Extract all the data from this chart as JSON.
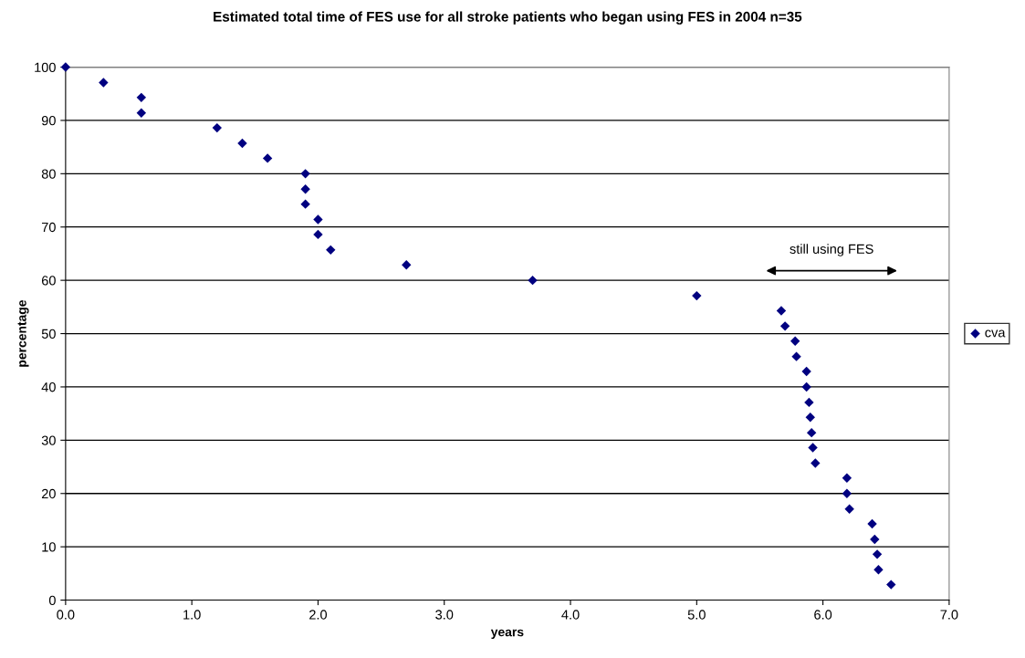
{
  "chart_data": {
    "type": "scatter",
    "title": "Estimated total time of FES use for all stroke patients who began using FES in 2004 n=35",
    "xlabel": "years",
    "ylabel": "percentage",
    "series": [
      {
        "name": "cva",
        "color": "#000080",
        "x": [
          0.0,
          0.3,
          0.6,
          0.6,
          1.2,
          1.4,
          1.6,
          1.9,
          1.9,
          1.9,
          2.0,
          2.0,
          2.1,
          2.7,
          3.7,
          5.0,
          5.67,
          5.7,
          5.78,
          5.79,
          5.87,
          5.87,
          5.89,
          5.9,
          5.91,
          5.92,
          5.94,
          6.19,
          6.19,
          6.21,
          6.39,
          6.41,
          6.43,
          6.44,
          6.54
        ],
        "values": [
          100,
          97.1,
          94.3,
          91.4,
          88.6,
          85.7,
          82.9,
          80.0,
          77.1,
          74.3,
          71.4,
          68.6,
          65.7,
          62.9,
          60.0,
          57.1,
          54.3,
          51.4,
          48.6,
          45.7,
          42.9,
          40.0,
          37.1,
          34.3,
          31.4,
          28.6,
          25.7,
          22.9,
          20.0,
          17.1,
          14.3,
          11.4,
          8.6,
          5.7,
          2.9
        ]
      }
    ],
    "annotations": [
      "still using FES"
    ],
    "xlim": [
      0,
      7
    ],
    "xticks": [
      {
        "value": 0,
        "label": "0.0"
      },
      {
        "value": 1,
        "label": "1.0"
      },
      {
        "value": 2,
        "label": "2.0"
      },
      {
        "value": 3,
        "label": "3.0"
      },
      {
        "value": 4,
        "label": "4.0"
      },
      {
        "value": 5,
        "label": "5.0"
      },
      {
        "value": 6,
        "label": "6.0"
      },
      {
        "value": 7,
        "label": "7.0"
      }
    ],
    "ylim": [
      0,
      100
    ],
    "yticks": [
      0,
      10,
      20,
      30,
      40,
      50,
      60,
      70,
      80,
      90,
      100
    ],
    "grid": "y",
    "legend": "right",
    "marker": "diamond"
  }
}
